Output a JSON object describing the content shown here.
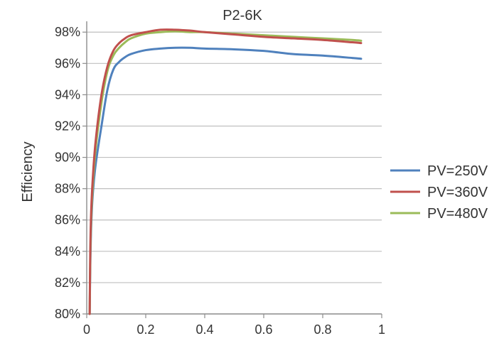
{
  "chart_data": {
    "type": "line",
    "title": "P2-6K",
    "xlabel": "",
    "ylabel": "Efficiency",
    "xlim": [
      0,
      1
    ],
    "ylim": [
      80,
      98.6
    ],
    "x_ticks": [
      "0",
      "0.2",
      "0.4",
      "0.6",
      "0.8",
      "1"
    ],
    "x_tick_values": [
      0,
      0.2,
      0.4,
      0.6,
      0.8,
      1
    ],
    "y_ticks": [
      "80%",
      "82%",
      "84%",
      "86%",
      "88%",
      "90%",
      "92%",
      "94%",
      "96%",
      "98%"
    ],
    "y_tick_values": [
      80,
      82,
      84,
      86,
      88,
      90,
      92,
      94,
      96,
      98
    ],
    "grid": "horizontal",
    "legend_position": "right",
    "series": [
      {
        "name": "PV=250V",
        "color": "#4f81bd",
        "x": [
          0.01,
          0.012,
          0.015,
          0.02,
          0.03,
          0.05,
          0.07,
          0.09,
          0.11,
          0.13,
          0.15,
          0.2,
          0.25,
          0.3,
          0.35,
          0.4,
          0.5,
          0.6,
          0.65,
          0.7,
          0.8,
          0.9,
          0.93
        ],
        "y": [
          80.0,
          83.0,
          85.5,
          87.5,
          89.5,
          92.0,
          94.3,
          95.6,
          96.1,
          96.4,
          96.6,
          96.85,
          96.95,
          97.0,
          97.0,
          96.95,
          96.9,
          96.8,
          96.7,
          96.6,
          96.5,
          96.35,
          96.3
        ]
      },
      {
        "name": "PV=360V",
        "color": "#c0504d",
        "x": [
          0.01,
          0.012,
          0.015,
          0.02,
          0.03,
          0.05,
          0.07,
          0.09,
          0.11,
          0.13,
          0.15,
          0.2,
          0.25,
          0.3,
          0.35,
          0.4,
          0.5,
          0.6,
          0.7,
          0.8,
          0.9,
          0.93
        ],
        "y": [
          80.0,
          84.0,
          86.5,
          88.5,
          91.0,
          94.0,
          95.8,
          96.8,
          97.3,
          97.6,
          97.8,
          98.0,
          98.15,
          98.15,
          98.1,
          98.0,
          97.85,
          97.7,
          97.6,
          97.5,
          97.35,
          97.3
        ]
      },
      {
        "name": "PV=480V",
        "color": "#9bbb59",
        "x": [
          0.01,
          0.012,
          0.015,
          0.02,
          0.03,
          0.05,
          0.07,
          0.09,
          0.11,
          0.13,
          0.15,
          0.2,
          0.25,
          0.3,
          0.35,
          0.4,
          0.5,
          0.6,
          0.7,
          0.8,
          0.9,
          0.93
        ],
        "y": [
          80.0,
          83.5,
          86.0,
          88.0,
          90.5,
          93.5,
          95.5,
          96.5,
          97.0,
          97.35,
          97.6,
          97.9,
          98.0,
          98.05,
          98.0,
          98.0,
          97.9,
          97.8,
          97.7,
          97.6,
          97.5,
          97.45
        ]
      }
    ]
  }
}
